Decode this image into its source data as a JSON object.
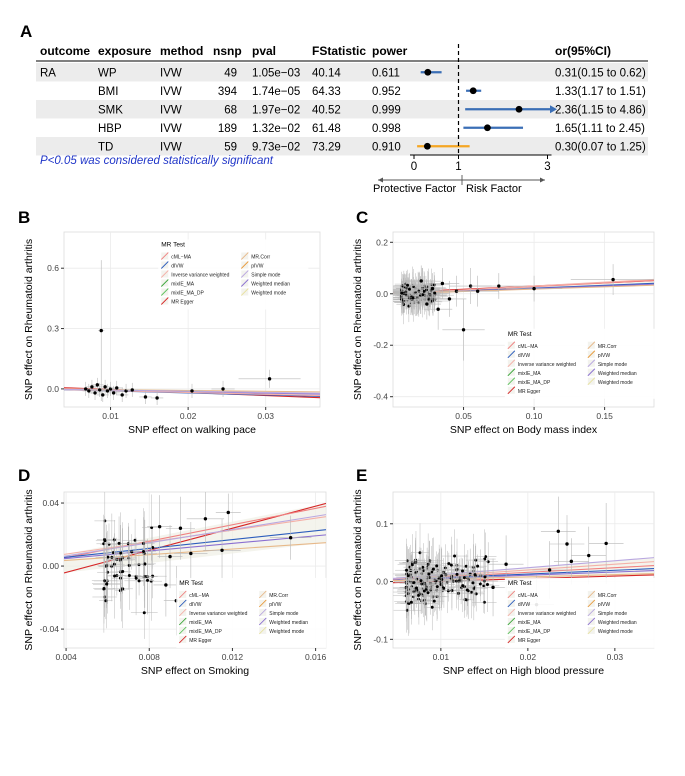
{
  "colors": {
    "row_band": "#ececec",
    "estimate_blue": "#3b6fb6",
    "estimate_orange": "#f5a623",
    "arrow_gray": "#555555",
    "note_blue": "#1f35c8",
    "panel_bg": "#ffffff",
    "grid": "#ebebeb",
    "point": "#000000",
    "errbar": "#b8b8b8"
  },
  "panels": {
    "A": "A",
    "B": "B",
    "C": "C",
    "D": "D",
    "E": "E"
  },
  "forest": {
    "headers": [
      "outcome",
      "exposure",
      "method",
      "nsnp",
      "pval",
      "FStatistic",
      "power",
      "or(95%CI)"
    ],
    "rows": [
      {
        "outcome": "RA",
        "exposure": "WP",
        "method": "IVW",
        "nsnp": "49",
        "pval": "1.05e−03",
        "fstat": "40.14",
        "power": "0.611",
        "orci": "0.31(0.15 to 0.62)",
        "or": 0.31,
        "lo": 0.15,
        "hi": 0.62,
        "color": "#3b6fb6",
        "arrow": false
      },
      {
        "outcome": "",
        "exposure": "BMI",
        "method": "IVW",
        "nsnp": "394",
        "pval": "1.74e−05",
        "fstat": "64.33",
        "power": "0.952",
        "orci": "1.33(1.17 to 1.51)",
        "or": 1.33,
        "lo": 1.17,
        "hi": 1.51,
        "color": "#3b6fb6",
        "arrow": false
      },
      {
        "outcome": "",
        "exposure": "SMK",
        "method": "IVW",
        "nsnp": "68",
        "pval": "1.97e−02",
        "fstat": "40.52",
        "power": "0.999",
        "orci": "2.36(1.15 to 4.86)",
        "or": 2.36,
        "lo": 1.15,
        "hi": 4.86,
        "color": "#3b6fb6",
        "arrow": true
      },
      {
        "outcome": "",
        "exposure": "HBP",
        "method": "IVW",
        "nsnp": "189",
        "pval": "1.32e−02",
        "fstat": "61.48",
        "power": "0.998",
        "orci": "1.65(1.11 to 2.45)",
        "or": 1.65,
        "lo": 1.11,
        "hi": 2.45,
        "color": "#3b6fb6",
        "arrow": false
      },
      {
        "outcome": "",
        "exposure": "TD",
        "method": "IVW",
        "nsnp": "59",
        "pval": "9.73e−02",
        "fstat": "73.29",
        "power": "0.910",
        "orci": "0.30(0.07 to 1.25)",
        "or": 0.3,
        "lo": 0.07,
        "hi": 1.25,
        "color": "#f5a623",
        "arrow": false
      }
    ],
    "axis_ticks": [
      0,
      1,
      3
    ],
    "reference_line": 1,
    "note": "P<0.05 was considered statistically significant",
    "protective_label": "Protective Factor",
    "risk_label": "Risk Factor"
  },
  "legend": {
    "title": "MR Test",
    "entries": [
      {
        "name": "cML−MA",
        "color": "#f08080"
      },
      {
        "name": "dIVW",
        "color": "#2c5dbd"
      },
      {
        "name": "Inverse variance weighted",
        "color": "#f4b0a8"
      },
      {
        "name": "mixIE_MA",
        "color": "#3aa63a"
      },
      {
        "name": "mixIE_MA_DP",
        "color": "#5cc25c"
      },
      {
        "name": "MR Egger",
        "color": "#d62728"
      },
      {
        "name": "MR.Corr",
        "color": "#e7b98a"
      },
      {
        "name": "pIVW",
        "color": "#e89a3c"
      },
      {
        "name": "Simple mode",
        "color": "#b9a7e0"
      },
      {
        "name": "Weighted median",
        "color": "#8a6fd1"
      },
      {
        "name": "Weighted mode",
        "color": "#e8e2a0"
      }
    ]
  },
  "chart_data": [
    {
      "panel": "B",
      "type": "scatter",
      "xlabel": "SNP effect on walking pace",
      "ylabel": "SNP effect on Rheumatoid arthritis",
      "xlim": [
        0.004,
        0.037
      ],
      "ylim": [
        -0.09,
        0.78
      ],
      "xticks": [
        0.01,
        0.02,
        0.03
      ],
      "xticklabels": [
        "0.01",
        "0.02",
        "0.03"
      ],
      "yticks": [
        0.0,
        0.3,
        0.6
      ],
      "yticklabels": [
        "0.0",
        "0.3",
        "0.6"
      ],
      "legend_position": "top-center",
      "points": [
        {
          "x": 0.0088,
          "y": 0.29,
          "xe": 0.0004,
          "ye": 0.35
        },
        {
          "x": 0.0068,
          "y": 0.0,
          "xe": 0.0008,
          "ye": 0.035
        },
        {
          "x": 0.0072,
          "y": -0.01,
          "xe": 0.0008,
          "ye": 0.035
        },
        {
          "x": 0.0076,
          "y": 0.01,
          "xe": 0.0008,
          "ye": 0.035
        },
        {
          "x": 0.008,
          "y": -0.02,
          "xe": 0.0008,
          "ye": 0.035
        },
        {
          "x": 0.0083,
          "y": 0.02,
          "xe": 0.0008,
          "ye": 0.035
        },
        {
          "x": 0.0086,
          "y": -0.005,
          "xe": 0.0008,
          "ye": 0.035
        },
        {
          "x": 0.009,
          "y": -0.03,
          "xe": 0.0008,
          "ye": 0.035
        },
        {
          "x": 0.0093,
          "y": 0.01,
          "xe": 0.0008,
          "ye": 0.035
        },
        {
          "x": 0.0096,
          "y": -0.01,
          "xe": 0.0008,
          "ye": 0.035
        },
        {
          "x": 0.01,
          "y": 0.0,
          "xe": 0.0008,
          "ye": 0.035
        },
        {
          "x": 0.0104,
          "y": -0.02,
          "xe": 0.0008,
          "ye": 0.035
        },
        {
          "x": 0.0108,
          "y": 0.005,
          "xe": 0.0008,
          "ye": 0.035
        },
        {
          "x": 0.0115,
          "y": -0.03,
          "xe": 0.0008,
          "ye": 0.035
        },
        {
          "x": 0.012,
          "y": -0.01,
          "xe": 0.0008,
          "ye": 0.035
        },
        {
          "x": 0.0128,
          "y": -0.005,
          "xe": 0.0008,
          "ye": 0.035
        },
        {
          "x": 0.0145,
          "y": -0.04,
          "xe": 0.0008,
          "ye": 0.035
        },
        {
          "x": 0.016,
          "y": -0.045,
          "xe": 0.0008,
          "ye": 0.035
        },
        {
          "x": 0.0205,
          "y": -0.01,
          "xe": 0.0015,
          "ye": 0.035
        },
        {
          "x": 0.0245,
          "y": 0.0,
          "xe": 0.0015,
          "ye": 0.04
        },
        {
          "x": 0.0305,
          "y": 0.05,
          "xe": 0.004,
          "ye": 0.045
        }
      ],
      "lines": [
        {
          "name": "MR Egger",
          "slope": -1.5,
          "intercept": 0.012
        },
        {
          "name": "cML−MA",
          "slope": -1.2,
          "intercept": 0.008
        },
        {
          "name": "dIVW",
          "slope": -1.0,
          "intercept": 0.0
        },
        {
          "name": "Weighted median",
          "slope": -0.7,
          "intercept": 0.0
        },
        {
          "name": "Inverse variance weighted",
          "slope": -0.9,
          "intercept": 0.0
        },
        {
          "name": "MR.Corr",
          "slope": -0.4,
          "intercept": 0.0
        },
        {
          "name": "Simple mode",
          "slope": -0.6,
          "intercept": 0.0
        }
      ]
    },
    {
      "panel": "C",
      "type": "scatter",
      "xlabel": "SNP effect on Body mass index",
      "ylabel": "SNP effect on Rheumatoid arthritis",
      "xlim": [
        0.0,
        0.185
      ],
      "ylim": [
        -0.44,
        0.24
      ],
      "xticks": [
        0.05,
        0.1,
        0.15
      ],
      "xticklabels": [
        "0.05",
        "0.10",
        "0.15"
      ],
      "yticks": [
        -0.4,
        -0.2,
        0.0,
        0.2
      ],
      "yticklabels": [
        "-0.4",
        "-0.2",
        "0.0",
        "0.2"
      ],
      "legend_position": "bottom-right",
      "points": [
        {
          "x": 0.02,
          "y": 0.05,
          "xe": 0.01,
          "ye": 0.06
        },
        {
          "x": 0.024,
          "y": -0.04,
          "xe": 0.01,
          "ye": 0.06
        },
        {
          "x": 0.028,
          "y": 0.02,
          "xe": 0.01,
          "ye": 0.06
        },
        {
          "x": 0.032,
          "y": -0.06,
          "xe": 0.01,
          "ye": 0.08
        },
        {
          "x": 0.035,
          "y": 0.04,
          "xe": 0.012,
          "ye": 0.06
        },
        {
          "x": 0.04,
          "y": -0.02,
          "xe": 0.012,
          "ye": 0.07
        },
        {
          "x": 0.045,
          "y": 0.01,
          "xe": 0.012,
          "ye": 0.06
        },
        {
          "x": 0.05,
          "y": -0.14,
          "xe": 0.015,
          "ye": 0.12
        },
        {
          "x": 0.055,
          "y": 0.03,
          "xe": 0.015,
          "ye": 0.07
        },
        {
          "x": 0.06,
          "y": 0.01,
          "xe": 0.015,
          "ye": 0.06
        },
        {
          "x": 0.075,
          "y": 0.03,
          "xe": 0.02,
          "ye": 0.05
        },
        {
          "x": 0.1,
          "y": 0.02,
          "xe": 0.02,
          "ye": 0.05
        },
        {
          "x": 0.156,
          "y": 0.055,
          "xe": 0.03,
          "ye": 0.06
        }
      ],
      "cluster": {
        "x0": 0.006,
        "x1": 0.03,
        "y0": -0.06,
        "y1": 0.06,
        "n": 160,
        "xe": 0.012,
        "ye": 0.06
      },
      "lines": [
        {
          "name": "MR Egger",
          "slope": 0.25,
          "intercept": 0.005
        },
        {
          "name": "cML−MA",
          "slope": 0.28,
          "intercept": 0.0
        },
        {
          "name": "dIVW",
          "slope": 0.22,
          "intercept": 0.0
        },
        {
          "name": "Weighted median",
          "slope": 0.2,
          "intercept": 0.0
        },
        {
          "name": "Inverse variance weighted",
          "slope": 0.3,
          "intercept": 0.0
        },
        {
          "name": "MR.Corr",
          "slope": 0.18,
          "intercept": 0.0
        }
      ]
    },
    {
      "panel": "D",
      "type": "scatter",
      "xlabel": "SNP effect on Smoking",
      "ylabel": "SNP effect on Rheumatoid arthritis",
      "xlim": [
        0.0039,
        0.0165
      ],
      "ylim": [
        -0.052,
        0.047
      ],
      "xticks": [
        0.004,
        0.008,
        0.012,
        0.016
      ],
      "xticklabels": [
        "0.004",
        "0.008",
        "0.012",
        "0.016"
      ],
      "yticks": [
        -0.04,
        0.0,
        0.04
      ],
      "yticklabels": [
        "-0.04",
        "0.00",
        "0.04"
      ],
      "legend_position": "bottom-right",
      "points": [
        {
          "x": 0.0085,
          "y": 0.025,
          "xe": 0.0006,
          "ye": 0.02
        },
        {
          "x": 0.009,
          "y": 0.006,
          "xe": 0.0006,
          "ye": 0.02
        },
        {
          "x": 0.0095,
          "y": 0.024,
          "xe": 0.0007,
          "ye": 0.02
        },
        {
          "x": 0.01,
          "y": 0.008,
          "xe": 0.0008,
          "ye": 0.02
        },
        {
          "x": 0.0107,
          "y": 0.03,
          "xe": 0.0009,
          "ye": 0.02
        },
        {
          "x": 0.0115,
          "y": 0.01,
          "xe": 0.0009,
          "ye": 0.02
        },
        {
          "x": 0.0118,
          "y": 0.034,
          "xe": 0.0006,
          "ye": 0.012
        },
        {
          "x": 0.0148,
          "y": 0.018,
          "xe": 0.001,
          "ye": 0.014
        },
        {
          "x": 0.0088,
          "y": -0.012,
          "xe": 0.0006,
          "ye": 0.02
        },
        {
          "x": 0.0093,
          "y": -0.022,
          "xe": 0.0006,
          "ye": 0.022
        }
      ],
      "cluster": {
        "x0": 0.0058,
        "x1": 0.0082,
        "y0": -0.035,
        "y1": 0.035,
        "n": 60,
        "xe": 0.0006,
        "ye": 0.022
      },
      "lines": [
        {
          "name": "MR Egger",
          "slope": 3.5,
          "intercept": -0.018
        },
        {
          "name": "cML−MA",
          "slope": 2.6,
          "intercept": -0.005
        },
        {
          "name": "dIVW",
          "slope": 1.4,
          "intercept": 0.0
        },
        {
          "name": "Weighted median",
          "slope": 1.2,
          "intercept": 0.0
        },
        {
          "name": "Inverse variance weighted",
          "slope": 1.9,
          "intercept": 0.0
        },
        {
          "name": "MR.Corr",
          "slope": 0.9,
          "intercept": 0.0
        },
        {
          "name": "Simple mode",
          "slope": 2.1,
          "intercept": -0.002
        }
      ]
    },
    {
      "panel": "E",
      "type": "scatter",
      "xlabel": "SNP effect on High blood pressure",
      "ylabel": "SNP effect on Rheumatoid arthritis",
      "xlim": [
        0.0045,
        0.0345
      ],
      "ylim": [
        -0.115,
        0.155
      ],
      "xticks": [
        0.01,
        0.02,
        0.03
      ],
      "xticklabels": [
        "0.01",
        "0.02",
        "0.03"
      ],
      "yticks": [
        -0.1,
        0.0,
        0.1
      ],
      "yticklabels": [
        "-0.1",
        "0.0",
        "0.1"
      ],
      "legend_position": "bottom-right",
      "points": [
        {
          "x": 0.0235,
          "y": 0.087,
          "xe": 0.002,
          "ye": 0.06
        },
        {
          "x": 0.0245,
          "y": 0.065,
          "xe": 0.002,
          "ye": 0.05
        },
        {
          "x": 0.029,
          "y": 0.066,
          "xe": 0.002,
          "ye": 0.07
        },
        {
          "x": 0.027,
          "y": 0.045,
          "xe": 0.002,
          "ye": 0.05
        },
        {
          "x": 0.025,
          "y": 0.035,
          "xe": 0.002,
          "ye": 0.04
        },
        {
          "x": 0.021,
          "y": -0.04,
          "xe": 0.002,
          "ye": 0.05
        },
        {
          "x": 0.0225,
          "y": 0.02,
          "xe": 0.002,
          "ye": 0.05
        },
        {
          "x": 0.0175,
          "y": 0.03,
          "xe": 0.002,
          "ye": 0.05
        },
        {
          "x": 0.016,
          "y": -0.01,
          "xe": 0.002,
          "ye": 0.05
        }
      ],
      "cluster": {
        "x0": 0.006,
        "x1": 0.0155,
        "y0": -0.06,
        "y1": 0.06,
        "n": 170,
        "xe": 0.0015,
        "ye": 0.045
      },
      "lines": [
        {
          "name": "MR Egger",
          "slope": 0.45,
          "intercept": -0.004
        },
        {
          "name": "cML−MA",
          "slope": 0.8,
          "intercept": 0.0
        },
        {
          "name": "dIVW",
          "slope": 0.65,
          "intercept": 0.0
        },
        {
          "name": "Weighted median",
          "slope": 0.55,
          "intercept": 0.0
        },
        {
          "name": "Inverse variance weighted",
          "slope": 1.0,
          "intercept": 0.0
        },
        {
          "name": "MR.Corr",
          "slope": 0.4,
          "intercept": 0.0
        },
        {
          "name": "Simple mode",
          "slope": 1.2,
          "intercept": 0.0
        }
      ]
    }
  ]
}
